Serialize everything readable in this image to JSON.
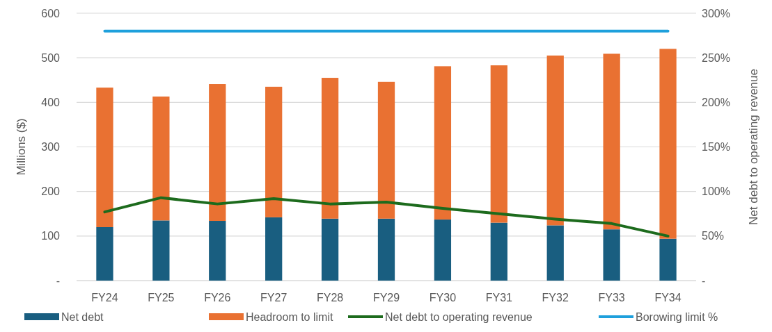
{
  "chart_data": {
    "type": "bar",
    "stacked": true,
    "categories": [
      "FY24",
      "FY25",
      "FY26",
      "FY27",
      "FY28",
      "FY29",
      "FY30",
      "FY31",
      "FY32",
      "FY33",
      "FY34"
    ],
    "series": [
      {
        "name": "Net debt",
        "color": "#195e80",
        "values": [
          120,
          135,
          134,
          142,
          139,
          139,
          137,
          130,
          124,
          115,
          94
        ]
      },
      {
        "name": "Headroom to limit",
        "color": "#e97132",
        "values": [
          313,
          278,
          307,
          293,
          316,
          307,
          344,
          353,
          381,
          394,
          426
        ]
      },
      {
        "name": "Net debt to operating revenue",
        "type": "line",
        "axis": "y2",
        "color": "#1d6b1d",
        "values": [
          77,
          93,
          86,
          92,
          86,
          88,
          81,
          75,
          69,
          64,
          50
        ]
      },
      {
        "name": "Borowing limit %",
        "type": "line",
        "axis": "y2",
        "color": "#1ea0dc",
        "values": [
          280,
          280,
          280,
          280,
          280,
          280,
          280,
          280,
          280,
          280,
          280
        ]
      }
    ],
    "ylabel": "Millions ($)",
    "y2label": "Net debt to operating revenue",
    "ylim": [
      0,
      600
    ],
    "yticks": [
      {
        "value": 0,
        "label": "-"
      },
      100,
      200,
      300,
      400,
      500,
      600
    ],
    "y2lim": [
      0,
      300
    ],
    "y2ticks": [
      {
        "value": 0,
        "label": "-"
      },
      {
        "value": 50,
        "label": "50%"
      },
      {
        "value": 100,
        "label": "100%"
      },
      {
        "value": 150,
        "label": "150%"
      },
      {
        "value": 200,
        "label": "200%"
      },
      {
        "value": 250,
        "label": "250%"
      },
      {
        "value": 300,
        "label": "300%"
      }
    ],
    "grid": "y",
    "legend": "bottom",
    "line_style": "solid",
    "marker": "none"
  }
}
